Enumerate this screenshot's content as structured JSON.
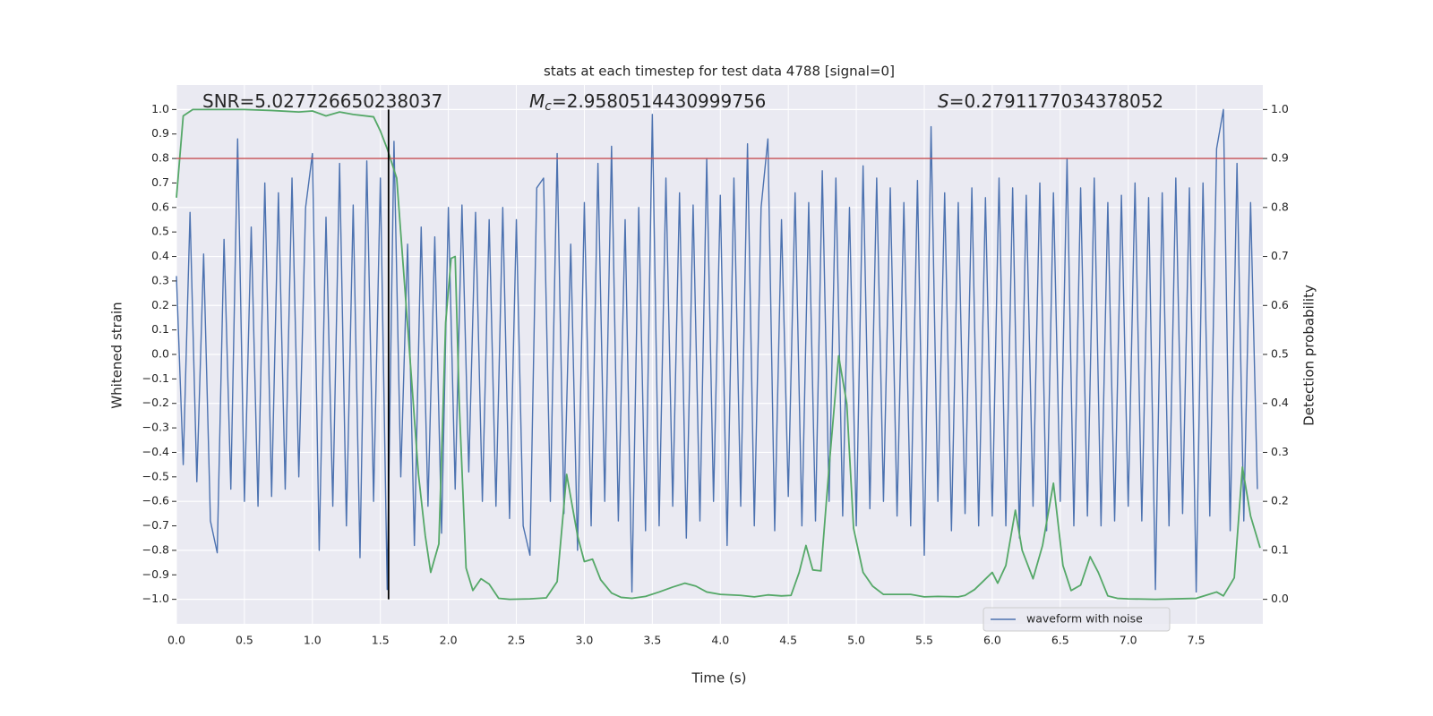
{
  "chart_data": {
    "type": "line",
    "title": "stats at each timestep for test data 4788 [signal=0]",
    "xlabel": "Time (s)",
    "ylabel": "Whitened strain",
    "y2label": "Detection probability",
    "xlim": [
      0,
      7.99
    ],
    "ylim": [
      -1.1,
      1.1
    ],
    "y2lim": [
      -0.05,
      1.05
    ],
    "xticks": [
      {
        "value": 0,
        "label": "0.0"
      },
      0.5,
      {
        "value": 1,
        "label": "1.0"
      },
      1.5,
      {
        "value": 2,
        "label": "2.0"
      },
      2.5,
      {
        "value": 3,
        "label": "3.0"
      },
      3.5,
      {
        "value": 4,
        "label": "4.0"
      },
      4.5,
      {
        "value": 5,
        "label": "5.0"
      },
      5.5,
      {
        "value": 6,
        "label": "6.0"
      },
      6.5,
      {
        "value": 7,
        "label": "7.0"
      },
      7.5
    ],
    "yticks": [
      {
        "value": -1,
        "label": "−1.0"
      },
      {
        "value": -0.9,
        "label": "−0.9"
      },
      {
        "value": -0.8,
        "label": "−0.8"
      },
      {
        "value": -0.7,
        "label": "−0.7"
      },
      {
        "value": -0.6,
        "label": "−0.6"
      },
      {
        "value": -0.5,
        "label": "−0.5"
      },
      {
        "value": -0.4,
        "label": "−0.4"
      },
      {
        "value": -0.3,
        "label": "−0.3"
      },
      {
        "value": -0.2,
        "label": "−0.2"
      },
      {
        "value": -0.1,
        "label": "−0.1"
      },
      {
        "value": 0,
        "label": "0.0"
      },
      0.1,
      0.2,
      0.3,
      0.4,
      0.5,
      0.6,
      0.7,
      0.8,
      0.9,
      {
        "value": 1,
        "label": "1.0"
      }
    ],
    "y2ticks": [
      {
        "value": 0,
        "label": "0.0"
      },
      0.1,
      0.2,
      0.3,
      0.4,
      0.5,
      0.6,
      0.7,
      0.8,
      0.9,
      {
        "value": 1,
        "label": "1.0"
      }
    ],
    "grid": true,
    "legend": "lower right",
    "series": [
      {
        "name": "waveform with noise",
        "color": "#4c72b0",
        "x": [
          0,
          0.05,
          0.1,
          0.15,
          0.2,
          0.25,
          0.3,
          0.35,
          0.4,
          0.45,
          0.5,
          0.55,
          0.6,
          0.65,
          0.7,
          0.75,
          0.8,
          0.85,
          0.9,
          0.95,
          1,
          1.05,
          1.1,
          1.15,
          1.2,
          1.25,
          1.3,
          1.35,
          1.4,
          1.45,
          1.5,
          1.55,
          1.6,
          1.65,
          1.7,
          1.75,
          1.8,
          1.85,
          1.9,
          1.95,
          2,
          2.05,
          2.1,
          2.15,
          2.2,
          2.25,
          2.3,
          2.35,
          2.4,
          2.45,
          2.5,
          2.55,
          2.6,
          2.65,
          2.7,
          2.75,
          2.8,
          2.85,
          2.9,
          2.95,
          3,
          3.05,
          3.1,
          3.15,
          3.2,
          3.25,
          3.3,
          3.35,
          3.4,
          3.45,
          3.5,
          3.55,
          3.6,
          3.65,
          3.7,
          3.75,
          3.8,
          3.85,
          3.9,
          3.95,
          4,
          4.05,
          4.1,
          4.15,
          4.2,
          4.25,
          4.3,
          4.35,
          4.4,
          4.45,
          4.5,
          4.55,
          4.6,
          4.65,
          4.7,
          4.75,
          4.8,
          4.85,
          4.9,
          4.95,
          5,
          5.05,
          5.1,
          5.15,
          5.2,
          5.25,
          5.3,
          5.35,
          5.4,
          5.45,
          5.5,
          5.55,
          5.6,
          5.65,
          5.7,
          5.75,
          5.8,
          5.85,
          5.9,
          5.95,
          6,
          6.05,
          6.1,
          6.15,
          6.2,
          6.25,
          6.3,
          6.35,
          6.4,
          6.45,
          6.5,
          6.55,
          6.6,
          6.65,
          6.7,
          6.75,
          6.8,
          6.85,
          6.9,
          6.95,
          7,
          7.05,
          7.1,
          7.15,
          7.2,
          7.25,
          7.3,
          7.35,
          7.4,
          7.45,
          7.5,
          7.55,
          7.6,
          7.65,
          7.7,
          7.75,
          7.8,
          7.85,
          7.9,
          7.95
        ],
        "values": [
          0.32,
          -0.45,
          0.58,
          -0.52,
          0.41,
          -0.68,
          -0.81,
          0.47,
          -0.55,
          0.88,
          -0.6,
          0.52,
          -0.62,
          0.7,
          -0.58,
          0.66,
          -0.55,
          0.72,
          -0.5,
          0.6,
          0.82,
          -0.8,
          0.56,
          -0.62,
          0.78,
          -0.7,
          0.61,
          -0.83,
          0.79,
          -0.6,
          0.72,
          -0.96,
          0.87,
          -0.5,
          0.45,
          -0.78,
          0.52,
          -0.62,
          0.48,
          -0.73,
          0.6,
          -0.55,
          0.61,
          -0.48,
          0.58,
          -0.6,
          0.55,
          -0.62,
          0.6,
          -0.67,
          0.55,
          -0.7,
          -0.82,
          0.68,
          0.72,
          -0.6,
          0.82,
          -0.65,
          0.45,
          -0.8,
          0.62,
          -0.7,
          0.78,
          -0.6,
          0.85,
          -0.68,
          0.55,
          -0.97,
          0.6,
          -0.72,
          0.98,
          -0.7,
          0.72,
          -0.62,
          0.66,
          -0.75,
          0.61,
          -0.68,
          0.8,
          -0.6,
          0.65,
          -0.78,
          0.72,
          -0.62,
          0.86,
          -0.7,
          0.6,
          0.88,
          -0.72,
          0.55,
          -0.58,
          0.66,
          -0.7,
          0.62,
          -0.68,
          0.75,
          -0.6,
          0.72,
          -0.66,
          0.6,
          -0.7,
          0.77,
          -0.63,
          0.72,
          -0.6,
          0.68,
          -0.66,
          0.62,
          -0.7,
          0.71,
          -0.82,
          0.93,
          -0.6,
          0.66,
          -0.72,
          0.62,
          -0.65,
          0.68,
          -0.7,
          0.64,
          -0.66,
          0.72,
          -0.7,
          0.68,
          -0.75,
          0.65,
          -0.62,
          0.7,
          -0.72,
          0.66,
          -0.6,
          0.8,
          -0.7,
          0.68,
          -0.66,
          0.72,
          -0.7,
          0.62,
          -0.68,
          0.65,
          -0.62,
          0.7,
          -0.68,
          0.64,
          -0.96,
          0.66,
          -0.7,
          0.72,
          -0.65,
          0.68,
          -0.97,
          0.7,
          -0.66,
          0.84,
          1.0,
          -0.72,
          0.78,
          -0.68,
          0.62,
          -0.55
        ]
      },
      {
        "color": "#55a868",
        "axis": "y2",
        "x": [
          0,
          0.05,
          0.12,
          0.3,
          0.5,
          0.7,
          0.9,
          1.0,
          1.1,
          1.2,
          1.3,
          1.45,
          1.5,
          1.55,
          1.62,
          1.7,
          1.78,
          1.83,
          1.87,
          1.93,
          1.98,
          2.02,
          2.05,
          2.08,
          2.13,
          2.18,
          2.24,
          2.3,
          2.37,
          2.45,
          2.6,
          2.72,
          2.8,
          2.87,
          2.95,
          3.0,
          3.06,
          3.12,
          3.2,
          3.27,
          3.35,
          3.45,
          3.55,
          3.65,
          3.74,
          3.82,
          3.9,
          4.0,
          4.15,
          4.25,
          4.35,
          4.45,
          4.52,
          4.58,
          4.63,
          4.68,
          4.74,
          4.8,
          4.87,
          4.93,
          4.98,
          5.05,
          5.12,
          5.2,
          5.27,
          5.4,
          5.5,
          5.6,
          5.75,
          5.8,
          5.87,
          5.93,
          6.0,
          6.04,
          6.1,
          6.17,
          6.22,
          6.3,
          6.37,
          6.45,
          6.52,
          6.58,
          6.65,
          6.72,
          6.78,
          6.85,
          6.92,
          7.0,
          7.2,
          7.5,
          7.58,
          7.65,
          7.7,
          7.78,
          7.84,
          7.9,
          7.97
        ],
        "values": [
          0.82,
          0.987,
          1.0,
          1.0,
          1.0,
          0.998,
          0.995,
          0.997,
          0.987,
          0.995,
          0.99,
          0.985,
          0.956,
          0.92,
          0.86,
          0.56,
          0.255,
          0.13,
          0.055,
          0.113,
          0.565,
          0.696,
          0.7,
          0.4,
          0.064,
          0.018,
          0.042,
          0.031,
          0.002,
          0.0,
          0.001,
          0.003,
          0.036,
          0.255,
          0.13,
          0.077,
          0.082,
          0.04,
          0.013,
          0.004,
          0.002,
          0.006,
          0.015,
          0.025,
          0.033,
          0.027,
          0.015,
          0.01,
          0.008,
          0.005,
          0.009,
          0.007,
          0.008,
          0.055,
          0.11,
          0.06,
          0.058,
          0.27,
          0.497,
          0.4,
          0.145,
          0.055,
          0.027,
          0.01,
          0.01,
          0.01,
          0.005,
          0.006,
          0.005,
          0.008,
          0.02,
          0.036,
          0.055,
          0.033,
          0.069,
          0.182,
          0.1,
          0.042,
          0.11,
          0.237,
          0.069,
          0.018,
          0.029,
          0.087,
          0.055,
          0.007,
          0.002,
          0.001,
          0.0,
          0.002,
          0.009,
          0.015,
          0.007,
          0.044,
          0.27,
          0.17,
          0.105
        ]
      }
    ],
    "hlines": [
      {
        "y": 0.8,
        "color": "#c44e52"
      }
    ],
    "vlines": [
      {
        "x": 1.56,
        "ymin": -1,
        "ymax": 1,
        "color": "#000000"
      }
    ],
    "annotations": [
      {
        "text": "SNR=5.027726650238037"
      },
      {
        "symbol": "M",
        "subscript": "c",
        "text": "=2.9580514430999756"
      },
      {
        "symbol": "S",
        "text": "=0.2791177034378052"
      }
    ]
  }
}
